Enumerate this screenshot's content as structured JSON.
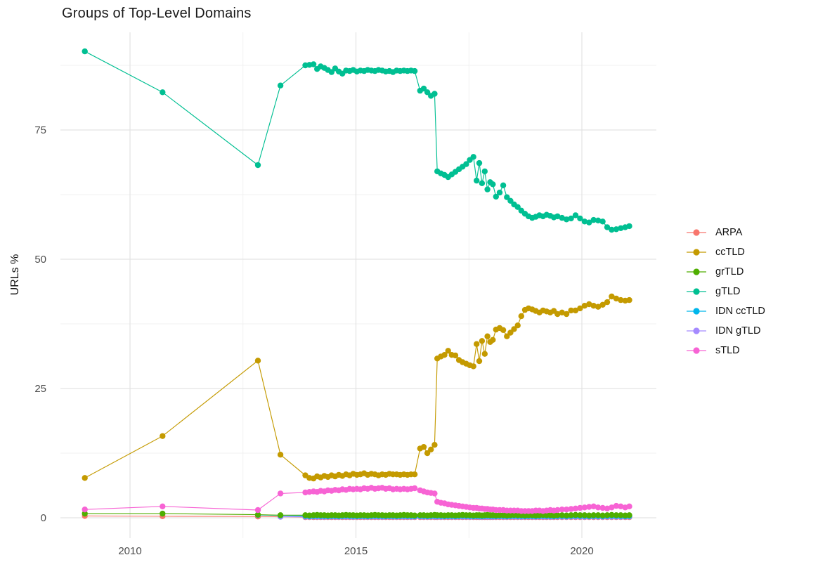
{
  "title": "Groups of Top-Level Domains",
  "y_axis": {
    "label": "URLs %",
    "ticks": [
      0,
      25,
      50,
      75
    ]
  },
  "x_axis": {
    "ticks": [
      2010,
      2015,
      2020
    ]
  },
  "colors": {
    "background": "#FFFFFF",
    "grid_major": "#E3E3E3",
    "grid_minor": "#F0F0F0",
    "axis_text": "#4D4D4D",
    "title_text": "#1A1A1A"
  },
  "legend": {
    "items": [
      {
        "label": "ARPA",
        "color": "#F8766D"
      },
      {
        "label": "ccTLD",
        "color": "#C49A00"
      },
      {
        "label": "grTLD",
        "color": "#4FAE00"
      },
      {
        "label": "gTLD",
        "color": "#00BF92"
      },
      {
        "label": "IDN ccTLD",
        "color": "#00B6EB"
      },
      {
        "label": "IDN gTLD",
        "color": "#A58AFF"
      },
      {
        "label": "sTLD",
        "color": "#F763D4"
      }
    ]
  },
  "chart_data": {
    "type": "scatter",
    "title": "Groups of Top-Level Domains",
    "xlabel": "",
    "ylabel": "URLs %",
    "xlim": [
      2008.45,
      2021.65
    ],
    "ylim": [
      -3.5,
      93.5
    ],
    "grid": true,
    "legend_position": "right",
    "x_major_gridlines": [
      2010,
      2015,
      2020
    ],
    "x_minor_gridlines": [
      2012.5,
      2017.5
    ],
    "y_major_gridlines": [
      0,
      25,
      50,
      75
    ],
    "y_minor_gridlines": [
      12.5,
      37.5,
      62.5,
      87.5
    ],
    "x_main": [
      2009.0,
      2010.72,
      2012.83,
      2013.33,
      2013.88,
      2013.97,
      2014.06,
      2014.14,
      2014.22,
      2014.3,
      2014.38,
      2014.46,
      2014.54,
      2014.62,
      2014.7,
      2014.78,
      2014.86,
      2014.94,
      2015.02,
      2015.1,
      2015.18,
      2015.26,
      2015.34,
      2015.42,
      2015.5,
      2015.58,
      2015.66,
      2015.74,
      2015.82,
      2015.9,
      2015.98,
      2016.06,
      2016.14,
      2016.22,
      2016.3,
      2016.42,
      2016.5,
      2016.58,
      2016.66,
      2016.74,
      2016.8,
      2016.88,
      2016.96,
      2017.04,
      2017.12,
      2017.2,
      2017.28,
      2017.36,
      2017.44,
      2017.52,
      2017.6,
      2017.67,
      2017.73,
      2017.79,
      2017.85,
      2017.91,
      2017.97,
      2018.03,
      2018.1,
      2018.18,
      2018.26,
      2018.34,
      2018.42,
      2018.5,
      2018.58,
      2018.66,
      2018.74,
      2018.82,
      2018.9,
      2018.98,
      2019.06,
      2019.14,
      2019.22,
      2019.3,
      2019.38,
      2019.46,
      2019.56,
      2019.66,
      2019.76,
      2019.86,
      2019.96,
      2020.06,
      2020.16,
      2020.26,
      2020.36,
      2020.46,
      2020.56,
      2020.66,
      2020.76,
      2020.86,
      2020.96,
      2021.05
    ],
    "series": [
      {
        "name": "ARPA",
        "color": "#F8766D",
        "x_from": 0,
        "y": [
          0.35,
          0.3,
          0.25,
          0.2,
          0.12,
          0.12,
          0.12,
          0.12,
          0.12,
          0.12,
          0.12,
          0.12,
          0.12,
          0.12,
          0.12,
          0.12,
          0.12,
          0.12,
          0.12,
          0.12,
          0.12,
          0.12,
          0.12,
          0.12,
          0.12,
          0.12,
          0.12,
          0.12,
          0.12,
          0.12,
          0.12,
          0.12,
          0.12,
          0.12,
          0.12,
          0.12,
          0.12,
          0.12,
          0.12,
          0.12,
          0.12,
          0.12,
          0.12,
          0.12,
          0.12,
          0.12,
          0.12,
          0.12,
          0.12,
          0.12,
          0.12,
          0.12,
          0.12,
          0.12,
          0.12,
          0.12,
          0.12,
          0.12,
          0.12,
          0.12,
          0.12,
          0.12,
          0.12,
          0.12,
          0.12,
          0.12,
          0.12,
          0.12,
          0.12,
          0.12,
          0.12,
          0.12,
          0.12,
          0.12,
          0.12,
          0.12,
          0.12,
          0.12,
          0.12,
          0.12,
          0.12,
          0.12,
          0.12,
          0.12,
          0.12,
          0.12,
          0.12,
          0.12,
          0.12,
          0.12,
          0.12,
          0.12
        ]
      },
      {
        "name": "IDN gTLD",
        "color": "#A58AFF",
        "x_from": 3,
        "y": [
          0.2,
          0.2,
          0.18,
          0.22,
          0.2,
          0.2,
          0.18,
          0.2,
          0.22,
          0.2,
          0.18,
          0.22,
          0.2,
          0.2,
          0.18,
          0.2,
          0.22,
          0.2,
          0.18,
          0.22,
          0.2,
          0.2,
          0.18,
          0.2,
          0.22,
          0.2,
          0.18,
          0.22,
          0.2,
          0.2,
          0.18,
          0.2,
          0.22,
          0.2,
          0.18,
          0.22,
          0.2,
          0.2,
          0.18,
          0.2,
          0.22,
          0.2,
          0.18,
          0.22,
          0.2,
          0.2,
          0.18,
          0.2,
          0.22,
          0.2,
          0.18,
          0.22,
          0.2,
          0.2,
          0.18,
          0.2,
          0.22,
          0.2,
          0.18,
          0.22,
          0.2,
          0.2,
          0.18,
          0.2,
          0.22,
          0.2,
          0.18,
          0.22,
          0.2,
          0.2,
          0.18,
          0.2,
          0.22,
          0.2,
          0.18,
          0.22,
          0.2,
          0.2,
          0.18,
          0.2,
          0.22,
          0.2,
          0.18,
          0.22,
          0.2,
          0.2,
          0.18,
          0.2,
          0.22
        ]
      },
      {
        "name": "IDN ccTLD",
        "color": "#00B6EB",
        "x_from": 2,
        "y": [
          0.55,
          0.45,
          0.35,
          0.3,
          0.35,
          0.4,
          0.35,
          0.35,
          0.3,
          0.35,
          0.35,
          0.3,
          0.35,
          0.4,
          0.35,
          0.35,
          0.3,
          0.35,
          0.35,
          0.3,
          0.35,
          0.4,
          0.35,
          0.35,
          0.3,
          0.35,
          0.35,
          0.3,
          0.35,
          0.4,
          0.35,
          0.35,
          0.3,
          0.35,
          0.35,
          0.3,
          0.35,
          0.4,
          0.35,
          0.35,
          0.3,
          0.35,
          0.35,
          0.3,
          0.35,
          0.4,
          0.35,
          0.35,
          0.3,
          0.35,
          0.35,
          0.3,
          0.35,
          0.4,
          0.35,
          0.35,
          0.3,
          0.35,
          0.35,
          0.3,
          0.35,
          0.4,
          0.35,
          0.35,
          0.3,
          0.35,
          0.35,
          0.3,
          0.35,
          0.4,
          0.35,
          0.35,
          0.3,
          0.35,
          0.35,
          0.3,
          0.35,
          0.4,
          0.35,
          0.35,
          0.3,
          0.35,
          0.35,
          0.3,
          0.35,
          0.4,
          0.35,
          0.35,
          0.3,
          0.35
        ]
      },
      {
        "name": "grTLD",
        "color": "#4FAE00",
        "x_from": 0,
        "y": [
          0.8,
          0.8,
          0.6,
          0.5,
          0.5,
          0.45,
          0.5,
          0.55,
          0.5,
          0.5,
          0.45,
          0.5,
          0.5,
          0.45,
          0.5,
          0.55,
          0.5,
          0.5,
          0.45,
          0.5,
          0.5,
          0.45,
          0.5,
          0.55,
          0.5,
          0.5,
          0.45,
          0.5,
          0.5,
          0.45,
          0.5,
          0.55,
          0.5,
          0.5,
          0.45,
          0.5,
          0.5,
          0.45,
          0.5,
          0.55,
          0.5,
          0.5,
          0.45,
          0.5,
          0.5,
          0.45,
          0.5,
          0.55,
          0.5,
          0.5,
          0.45,
          0.5,
          0.5,
          0.45,
          0.5,
          0.55,
          0.5,
          0.5,
          0.45,
          0.5,
          0.5,
          0.45,
          0.5,
          0.55,
          0.5,
          0.5,
          0.45,
          0.5,
          0.5,
          0.45,
          0.5,
          0.55,
          0.5,
          0.5,
          0.45,
          0.5,
          0.5,
          0.45,
          0.5,
          0.55,
          0.5,
          0.5,
          0.45,
          0.5,
          0.5,
          0.45,
          0.5,
          0.55,
          0.5,
          0.5,
          0.45,
          0.5
        ]
      },
      {
        "name": "sTLD",
        "color": "#F763D4",
        "x_from": 0,
        "y": [
          1.6,
          2.2,
          1.5,
          4.7,
          4.9,
          5.0,
          5.1,
          5.0,
          5.2,
          5.1,
          5.3,
          5.2,
          5.4,
          5.3,
          5.5,
          5.4,
          5.6,
          5.5,
          5.6,
          5.5,
          5.7,
          5.6,
          5.8,
          5.6,
          5.7,
          5.8,
          5.6,
          5.7,
          5.5,
          5.6,
          5.5,
          5.6,
          5.5,
          5.6,
          5.7,
          5.3,
          5.1,
          4.9,
          4.8,
          4.7,
          3.1,
          2.9,
          2.8,
          2.6,
          2.5,
          2.4,
          2.3,
          2.2,
          2.1,
          2.0,
          1.9,
          1.9,
          1.8,
          1.8,
          1.7,
          1.7,
          1.6,
          1.6,
          1.5,
          1.5,
          1.5,
          1.4,
          1.4,
          1.4,
          1.4,
          1.3,
          1.3,
          1.3,
          1.3,
          1.4,
          1.4,
          1.3,
          1.4,
          1.5,
          1.4,
          1.5,
          1.6,
          1.6,
          1.7,
          1.8,
          1.9,
          2.0,
          2.1,
          2.2,
          2.0,
          1.9,
          1.8,
          2.0,
          2.3,
          2.2,
          2.0,
          2.2
        ]
      },
      {
        "name": "ccTLD",
        "color": "#C49A00",
        "x_from": 0,
        "y": [
          7.7,
          15.8,
          30.4,
          12.2,
          8.2,
          7.7,
          7.6,
          8.0,
          7.8,
          8.1,
          7.9,
          8.2,
          8.0,
          8.3,
          8.1,
          8.4,
          8.2,
          8.5,
          8.3,
          8.4,
          8.6,
          8.3,
          8.5,
          8.4,
          8.2,
          8.4,
          8.3,
          8.5,
          8.4,
          8.4,
          8.3,
          8.4,
          8.3,
          8.4,
          8.4,
          13.4,
          13.7,
          12.5,
          13.2,
          14.1,
          30.8,
          31.2,
          31.5,
          32.3,
          31.5,
          31.4,
          30.5,
          30.1,
          29.8,
          29.5,
          29.3,
          33.6,
          30.3,
          34.2,
          31.7,
          35.1,
          34.0,
          34.4,
          36.4,
          36.7,
          36.3,
          35.1,
          35.8,
          36.5,
          37.2,
          39.0,
          40.2,
          40.5,
          40.3,
          40.0,
          39.7,
          40.1,
          39.9,
          39.7,
          40.0,
          39.4,
          39.7,
          39.4,
          40.1,
          40.1,
          40.5,
          41.0,
          41.3,
          41.0,
          40.8,
          41.2,
          41.7,
          42.8,
          42.4,
          42.1,
          42.0,
          42.1
        ]
      },
      {
        "name": "gTLD",
        "color": "#00BF92",
        "x_from": 0,
        "y": [
          90.2,
          82.3,
          68.2,
          83.6,
          87.5,
          87.6,
          87.7,
          86.8,
          87.3,
          87.0,
          86.6,
          86.2,
          86.9,
          86.3,
          85.9,
          86.5,
          86.4,
          86.6,
          86.3,
          86.5,
          86.4,
          86.6,
          86.5,
          86.4,
          86.6,
          86.5,
          86.3,
          86.4,
          86.2,
          86.5,
          86.4,
          86.5,
          86.4,
          86.5,
          86.4,
          82.6,
          83.0,
          82.3,
          81.6,
          82.0,
          67.0,
          66.6,
          66.3,
          65.9,
          66.4,
          66.9,
          67.4,
          67.9,
          68.4,
          69.2,
          69.8,
          65.2,
          68.6,
          64.7,
          67.0,
          63.5,
          64.9,
          64.5,
          62.1,
          62.9,
          64.3,
          62.0,
          61.3,
          60.6,
          60.1,
          59.4,
          58.8,
          58.3,
          58.0,
          58.2,
          58.5,
          58.3,
          58.6,
          58.4,
          58.1,
          58.3,
          58.0,
          57.7,
          57.9,
          58.5,
          57.9,
          57.3,
          57.1,
          57.6,
          57.5,
          57.3,
          56.2,
          55.7,
          55.8,
          56.0,
          56.2,
          56.4
        ]
      }
    ]
  }
}
